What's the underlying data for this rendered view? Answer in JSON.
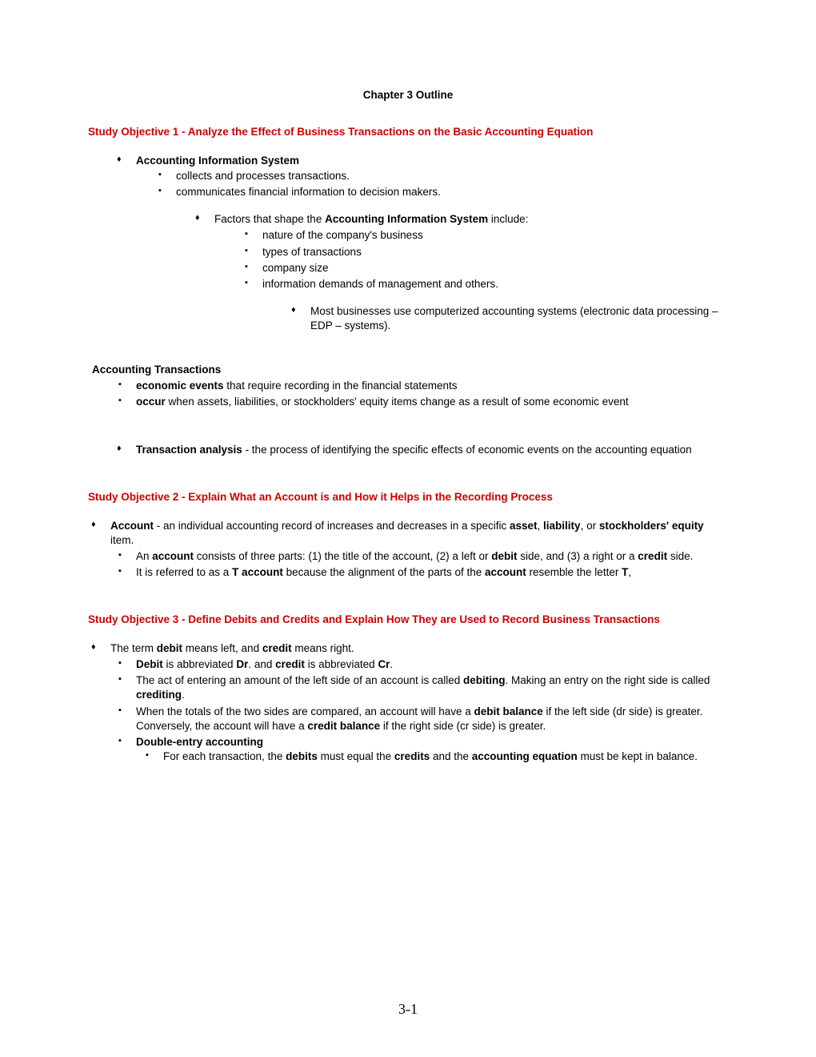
{
  "title": "Chapter 3 Outline",
  "obj1": {
    "heading": "Study Objective 1 - Analyze the Effect of Business Transactions on the Basic Accounting Equation",
    "ais_head": "Accounting Information System",
    "ais_sub1": "collects and processes transactions.",
    "ais_sub2": "communicates financial information to decision makers.",
    "factors_intro_html": "Factors that shape the <b>Accounting Information System</b> include:",
    "f1": "nature of the company's business",
    "f2": "types of transactions",
    "f3": "company size",
    "f4": "information demands of management and others.",
    "edp": "Most businesses use computerized accounting systems (electronic data processing – EDP – systems).",
    "trans_head": "Accounting Transactions",
    "t1_html": "<b>economic events</b> that require recording in the financial statements",
    "t2_html": "<b>occur</b> when assets, liabilities, or stockholders' equity items change as a result of some economic event",
    "analysis_html": "<b>Transaction analysis</b> - the process of identifying the specific effects of economic events on the accounting equation"
  },
  "obj2": {
    "heading": "Study Objective 2 - Explain What an Account is and How it Helps in the Recording Process",
    "acct_html": "<b>Account</b> - an individual accounting record of increases and decreases in a specific <b>asset</b>, <b>liability</b>, or <b>stockholders' equity</b> item.",
    "parts_html": "An <b>account</b> consists of three parts:  (1) the title of the account, (2) a left or <b>debit</b> side, and (3) a right or a <b>credit</b> side.",
    "taccount_html": "It is referred to as a <b>T account</b> because the alignment of the parts of the <b>account</b> resemble the letter <b>T</b>,"
  },
  "obj3": {
    "heading": "Study Objective 3 - Define Debits and Credits and Explain How They are Used to Record Business Transactions",
    "dc1_html": "The term <b>debit</b> means left, and <b>credit</b> means right.",
    "dc2_html": "<b>Debit</b> is abbreviated <b>Dr</b>. and <b>credit</b> is abbreviated <b>Cr</b>.",
    "dc3_html": "The act of entering an amount of the left side of an account is called <b>debiting</b>. Making an entry on the right side is called <b>crediting</b>.",
    "dc4_html": "When the totals of the two sides are compared, an account will have a <b>debit balance</b> if the left side (dr side) is greater.  Conversely, the account will have a <b>credit balance</b> if the right side (cr side) is greater.",
    "dc5_html": "<b>Double-entry accounting</b>",
    "dc5a_html": "For each transaction, the <b>debits</b> must equal the <b>credits</b> and the <b>accounting equation</b> must be kept in balance."
  },
  "pagenum": "3-1",
  "colors": {
    "objective": "#cc0000",
    "text": "#000000",
    "background": "#ffffff"
  }
}
